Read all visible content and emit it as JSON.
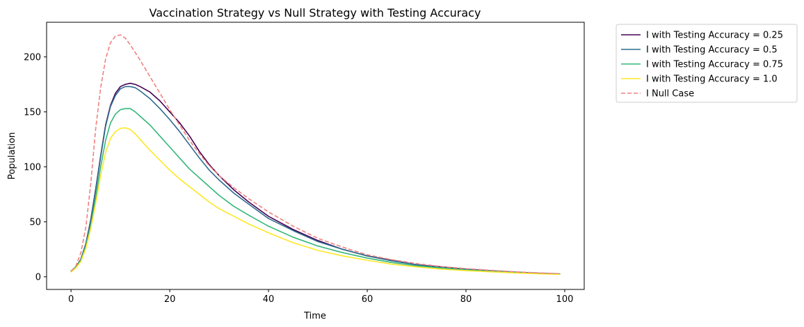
{
  "chart_data": {
    "type": "line",
    "title": "Vaccination Strategy vs Null Strategy with Testing Accuracy",
    "xlabel": "Time",
    "ylabel": "Population",
    "xlim": [
      -4.95,
      103.95
    ],
    "ylim": [
      -11.5,
      231.5
    ],
    "xticks": [
      0,
      20,
      40,
      60,
      80,
      100
    ],
    "yticks": [
      0,
      50,
      100,
      150,
      200
    ],
    "grid": false,
    "legend_position": "outside-top-right",
    "series": [
      {
        "name": "I with Testing Accuracy = 0.25",
        "color": "#440154",
        "dash": "solid",
        "x": [
          0,
          1,
          2,
          3,
          4,
          5,
          6,
          7,
          8,
          9,
          10,
          11,
          12,
          13,
          14,
          16,
          18,
          20,
          22,
          24,
          26,
          28,
          30,
          33,
          36,
          40,
          45,
          50,
          55,
          60,
          65,
          70,
          75,
          80,
          85,
          90,
          95,
          99
        ],
        "y": [
          5,
          9,
          16,
          30,
          52,
          80,
          110,
          138,
          156,
          167,
          173,
          175,
          176,
          175,
          173,
          168,
          160,
          150,
          140,
          128,
          114,
          102,
          92,
          79,
          68,
          55,
          43,
          33,
          25,
          19,
          15,
          11,
          9,
          7,
          5.5,
          4.2,
          3.2,
          2.6
        ]
      },
      {
        "name": "I with Testing Accuracy = 0.5",
        "color": "#2c6b8e",
        "dash": "solid",
        "x": [
          0,
          1,
          2,
          3,
          4,
          5,
          6,
          7,
          8,
          9,
          10,
          11,
          12,
          13,
          14,
          16,
          18,
          20,
          22,
          24,
          26,
          28,
          30,
          33,
          36,
          40,
          45,
          50,
          55,
          60,
          65,
          70,
          75,
          80,
          85,
          90,
          95,
          99
        ],
        "y": [
          5,
          9,
          16,
          30,
          51,
          79,
          109,
          137,
          155,
          165,
          171,
          173,
          173,
          172,
          169,
          162,
          153,
          143,
          132,
          120,
          108,
          97,
          88,
          76,
          66,
          53,
          42,
          32,
          25,
          19,
          14.5,
          11,
          8.5,
          6.8,
          5.3,
          4.1,
          3.1,
          2.5
        ]
      },
      {
        "name": "I with Testing Accuracy = 0.75",
        "color": "#35b779",
        "dash": "solid",
        "x": [
          0,
          1,
          2,
          3,
          4,
          5,
          6,
          7,
          8,
          9,
          10,
          11,
          12,
          13,
          14,
          16,
          18,
          20,
          22,
          24,
          26,
          28,
          30,
          33,
          36,
          40,
          45,
          50,
          55,
          60,
          65,
          70,
          75,
          80,
          85,
          90,
          95,
          99
        ],
        "y": [
          5,
          9,
          15,
          28,
          47,
          72,
          100,
          124,
          140,
          148,
          152,
          153,
          153,
          150,
          146,
          138,
          128,
          118,
          108,
          98,
          90,
          82,
          74,
          64,
          56,
          46,
          36,
          28,
          22,
          17,
          13,
          10,
          8,
          6.3,
          5,
          3.8,
          2.9,
          2.4
        ]
      },
      {
        "name": "I with Testing Accuracy = 1.0",
        "color": "#fde725",
        "dash": "solid",
        "x": [
          0,
          1,
          2,
          3,
          4,
          5,
          6,
          7,
          8,
          9,
          10,
          11,
          12,
          13,
          14,
          16,
          18,
          20,
          22,
          24,
          26,
          28,
          30,
          33,
          36,
          40,
          45,
          50,
          55,
          60,
          65,
          70,
          75,
          80,
          85,
          90,
          95,
          99
        ],
        "y": [
          4.5,
          8,
          14,
          26,
          44,
          67,
          92,
          113,
          126,
          132,
          135,
          135.5,
          134,
          130,
          125,
          115,
          106,
          97,
          89,
          82,
          75,
          68,
          62,
          55,
          48,
          40,
          31,
          24,
          19,
          15,
          11.5,
          9,
          7,
          5.6,
          4.5,
          3.5,
          2.7,
          2.2
        ]
      },
      {
        "name": "I Null Case",
        "color": "#f08080",
        "dash": "dashed",
        "x": [
          0,
          1,
          2,
          3,
          4,
          5,
          6,
          7,
          8,
          9,
          10,
          11,
          12,
          13,
          14,
          16,
          18,
          20,
          22,
          24,
          26,
          28,
          30,
          33,
          36,
          40,
          45,
          50,
          55,
          60,
          65,
          70,
          75,
          80,
          85,
          90,
          95,
          99
        ],
        "y": [
          5,
          10,
          22,
          45,
          85,
          135,
          172,
          198,
          213,
          219,
          220,
          217,
          211,
          204,
          197,
          182,
          167,
          152,
          138,
          124,
          112,
          101,
          92,
          81,
          71,
          59,
          46,
          35,
          27,
          20,
          15.5,
          12,
          9.3,
          7.4,
          5.9,
          4.5,
          3.5,
          2.8
        ]
      }
    ]
  }
}
